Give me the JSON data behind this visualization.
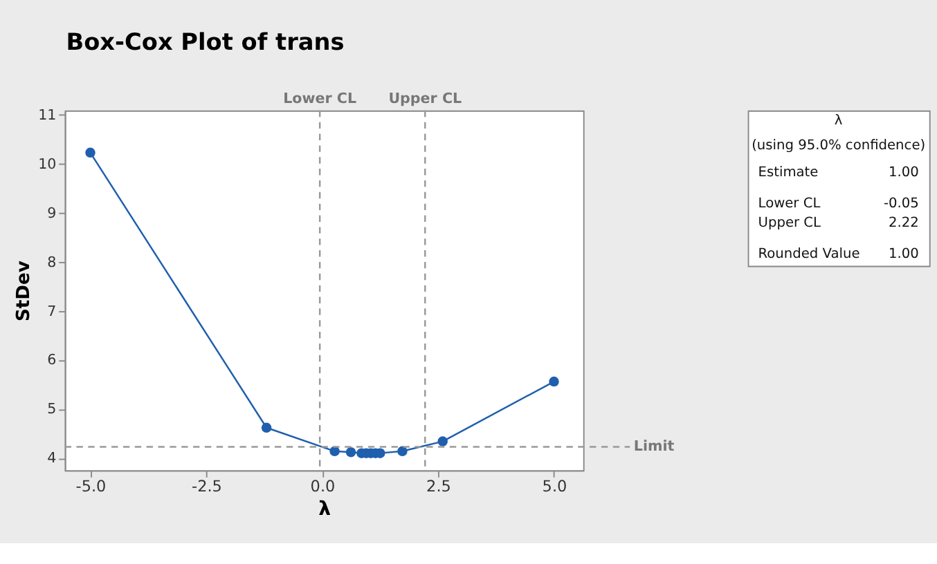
{
  "chart_data": {
    "type": "line",
    "title": "Box-Cox Plot of trans",
    "xlabel": "λ",
    "ylabel": "StDev",
    "x": [
      -5,
      -1.2,
      0.27,
      0.62,
      0.85,
      0.95,
      1.05,
      1.15,
      1.25,
      1.73,
      2.6,
      5
    ],
    "series": [
      {
        "color": "#1f5fae",
        "values": [
          10.23,
          4.62,
          4.14,
          4.12,
          4.1,
          4.1,
          4.1,
          4.1,
          4.1,
          4.14,
          4.34,
          5.56
        ]
      }
    ],
    "marker": "circle",
    "line_style": "solid",
    "xlim": [
      -5.55,
      5.63
    ],
    "xticks": [
      {
        "value": -5,
        "label": "-5.0"
      },
      {
        "value": -2.5,
        "label": "-2.5"
      },
      {
        "value": 0,
        "label": "0.0"
      },
      {
        "value": 2.5,
        "label": "2.5"
      },
      {
        "value": 5,
        "label": "5.0"
      }
    ],
    "ylim": [
      3.75,
      11.09
    ],
    "yticks": [
      4,
      5,
      6,
      7,
      8,
      9,
      10,
      11
    ],
    "grid": false,
    "ref_lines": [
      {
        "axis": "x",
        "value": -0.05,
        "label": "Lower CL",
        "color": "#999999",
        "line_style": "dashed"
      },
      {
        "axis": "x",
        "value": 2.22,
        "label": "Upper CL",
        "color": "#999999",
        "line_style": "dashed"
      },
      {
        "axis": "y",
        "value": 4.23,
        "label": "Limit",
        "color": "#999999",
        "line_style": "dashed"
      }
    ],
    "annotations": [
      "λ",
      "(using 95.0% confidence)",
      "Estimate",
      "1.00",
      "Lower CL",
      "-0.05",
      "Upper CL",
      "2.22",
      "Rounded Value",
      "1.00"
    ]
  }
}
